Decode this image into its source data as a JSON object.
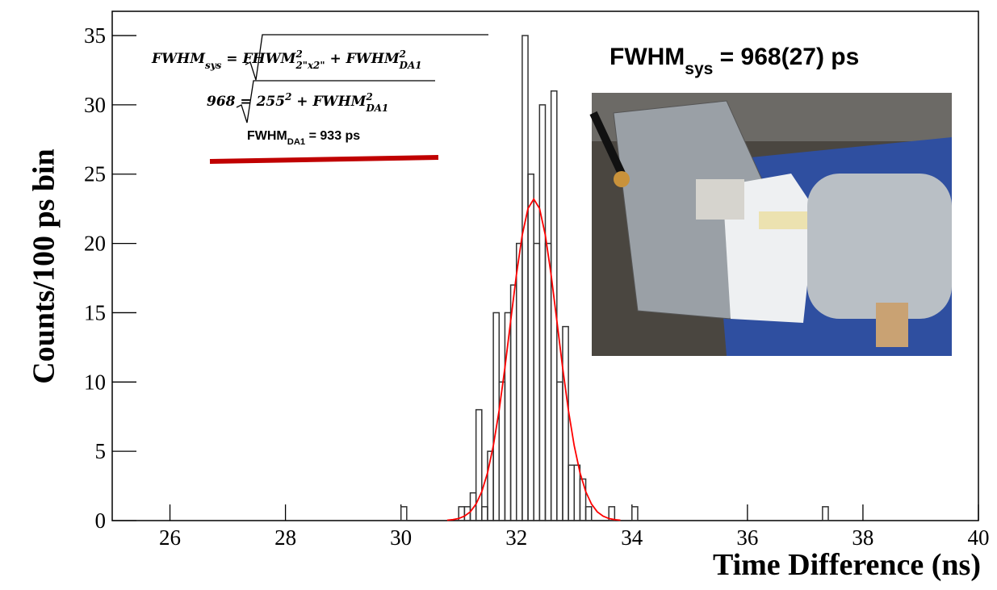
{
  "chart_data": {
    "type": "histogram",
    "title": {
      "parts": [
        {
          "text": "FWHM"
        },
        {
          "text": "sys",
          "style": "sub"
        },
        {
          "text": " = 968(27) ps"
        }
      ]
    },
    "x_label": "Time Difference (ns)",
    "y_label": "Counts/100 ps bin",
    "xlim": [
      25,
      40
    ],
    "ylim": [
      0,
      36.75
    ],
    "xticks": [
      26,
      28,
      30,
      32,
      34,
      36,
      38,
      40
    ],
    "yticks": [
      0,
      5,
      10,
      15,
      20,
      25,
      30,
      35
    ],
    "bins": [
      30.0,
      30.1,
      30.2,
      30.3,
      30.4,
      30.5,
      30.6,
      30.7,
      30.8,
      30.9,
      31.0,
      31.1,
      31.2,
      31.3,
      31.4,
      31.5,
      31.6,
      31.7,
      31.8,
      31.9,
      32.0,
      32.1,
      32.2,
      32.3,
      32.4,
      32.5,
      32.6,
      32.7,
      32.8,
      32.9,
      33.0,
      33.1,
      33.2,
      33.3,
      33.4,
      33.5,
      33.6,
      33.7,
      33.8,
      33.9,
      34.0,
      34.1,
      34.2,
      34.3,
      34.4,
      34.5,
      34.6,
      34.7,
      34.8,
      34.9,
      35.0,
      35.1,
      35.2,
      35.3,
      35.4,
      35.5,
      35.6,
      35.7,
      35.8,
      35.9,
      36.0,
      36.1,
      36.2,
      36.3,
      36.4,
      36.5,
      36.6,
      36.7,
      36.8,
      36.9,
      37.0,
      37.1,
      37.2,
      37.3,
      37.4
    ],
    "values": [
      1,
      0,
      0,
      0,
      0,
      0,
      0,
      0,
      0,
      0,
      1,
      1,
      2,
      8,
      1,
      5,
      15,
      10,
      15,
      17,
      20,
      35,
      25,
      20,
      30,
      20,
      31,
      10,
      14,
      4,
      4,
      3,
      1,
      0,
      0,
      0,
      1,
      0,
      0,
      0,
      1,
      0,
      0,
      0,
      0,
      0,
      0,
      0,
      0,
      0,
      0,
      0,
      0,
      0,
      0,
      0,
      0,
      0,
      0,
      0,
      0,
      0,
      0,
      0,
      0,
      0,
      0,
      0,
      0,
      0,
      0,
      0,
      0,
      1
    ],
    "color": "#333333",
    "fit": {
      "color": "#ff0000",
      "x": [
        30.8,
        30.9,
        31.0,
        31.1,
        31.2,
        31.3,
        31.4,
        31.5,
        31.6,
        31.7,
        31.8,
        31.9,
        32.0,
        32.1,
        32.2,
        32.3,
        32.4,
        32.5,
        32.6,
        32.7,
        32.8,
        32.9,
        33.0,
        33.1,
        33.2,
        33.3,
        33.4,
        33.5,
        33.6,
        33.7,
        33.8
      ],
      "values": [
        0.03,
        0.07,
        0.15,
        0.32,
        0.63,
        1.19,
        2.09,
        3.46,
        5.41,
        7.95,
        11.03,
        14.41,
        17.75,
        20.6,
        22.52,
        23.2,
        22.52,
        20.6,
        17.75,
        14.41,
        11.03,
        7.95,
        5.41,
        3.46,
        2.09,
        1.19,
        0.63,
        0.32,
        0.15,
        0.07,
        0.03
      ]
    },
    "annotations": [
      {
        "parts": [
          {
            "text": "FWHM"
          },
          {
            "text": "sys",
            "style": "sub"
          },
          {
            "text": " = "
          },
          {
            "text": "FHWM"
          },
          {
            "text": "2",
            "style": "sup"
          },
          {
            "text": "2\"x2\"",
            "style": "sub"
          },
          {
            "text": " + FWHM"
          },
          {
            "text": "2",
            "style": "sup"
          },
          {
            "text": "DA1",
            "style": "sub"
          }
        ]
      },
      {
        "parts": [
          {
            "text": "968 = "
          },
          {
            "text": "255"
          },
          {
            "text": "2",
            "style": "sup"
          },
          {
            "text": " + FWHM"
          },
          {
            "text": "2",
            "style": "sup"
          },
          {
            "text": "DA1",
            "style": "sub"
          }
        ]
      },
      {
        "parts": [
          {
            "text": "FWHM"
          },
          {
            "text": "DA1",
            "style": "sub"
          },
          {
            "text": " = 933 ps"
          }
        ]
      }
    ]
  }
}
